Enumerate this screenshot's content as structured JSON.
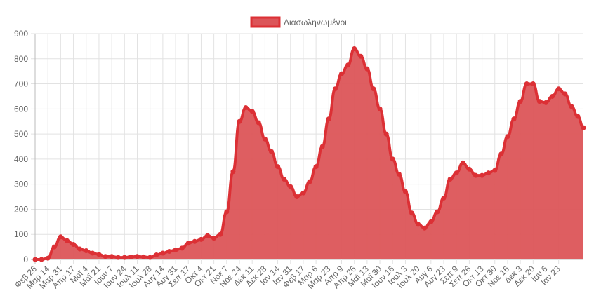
{
  "chart_data": {
    "type": "area",
    "title": "",
    "xlabel": "",
    "ylabel": "",
    "ylim": [
      0,
      900
    ],
    "yticks": [
      0,
      100,
      200,
      300,
      400,
      500,
      600,
      700,
      800,
      900
    ],
    "grid": true,
    "legend_position": "top-center",
    "x_tick_labels": [
      "Φεβ 26",
      "Μαρ 14",
      "Μαρ 31",
      "Απρ 17",
      "Μαϊ 4",
      "Μαϊ 21",
      "Ιουν 7",
      "Ιουν 24",
      "Ιουλ 11",
      "Ιουλ 28",
      "Αυγ 14",
      "Αυγ 31",
      "Σεπ 17",
      "Οκτ 4",
      "Οκτ 21",
      "Νοε 7",
      "Νοε 24",
      "Δεκ 11",
      "Δεκ 28",
      "Ιαν 14",
      "Ιαν 31",
      "Φεβ 17",
      "Μαρ 6",
      "Μαρ 23",
      "Απρ 9",
      "Απρ 26",
      "Μαϊ 13",
      "Μαϊ 30",
      "Ιουν 16",
      "Ιουλ 3",
      "Ιουλ 20",
      "Αυγ 6",
      "Αυγ 23",
      "Σεπ 9",
      "Σεπ 26",
      "Οκτ 13",
      "Οκτ 30",
      "Νοε 16",
      "Δεκ 3",
      "Δεκ 20",
      "Ιαν 6",
      "Ιαν 23"
    ],
    "tick_interval_days": 17,
    "sample_interval_days": 8.5,
    "total_days": 730,
    "series": [
      {
        "name": "Διασωληνωμένοι",
        "color": "#dc3035",
        "fill": "#dc5559",
        "values": [
          0,
          0,
          5,
          50,
          90,
          75,
          60,
          42,
          35,
          25,
          20,
          12,
          12,
          8,
          8,
          10,
          12,
          10,
          8,
          18,
          25,
          32,
          38,
          45,
          65,
          72,
          80,
          95,
          85,
          100,
          190,
          350,
          550,
          605,
          590,
          545,
          480,
          430,
          370,
          320,
          290,
          250,
          265,
          310,
          370,
          450,
          560,
          680,
          740,
          775,
          840,
          810,
          760,
          680,
          600,
          500,
          400,
          340,
          270,
          185,
          140,
          125,
          150,
          190,
          245,
          320,
          345,
          385,
          360,
          335,
          335,
          345,
          355,
          420,
          490,
          560,
          630,
          700,
          700,
          630,
          625,
          650,
          680,
          660,
          610,
          570,
          525
        ]
      }
    ]
  }
}
